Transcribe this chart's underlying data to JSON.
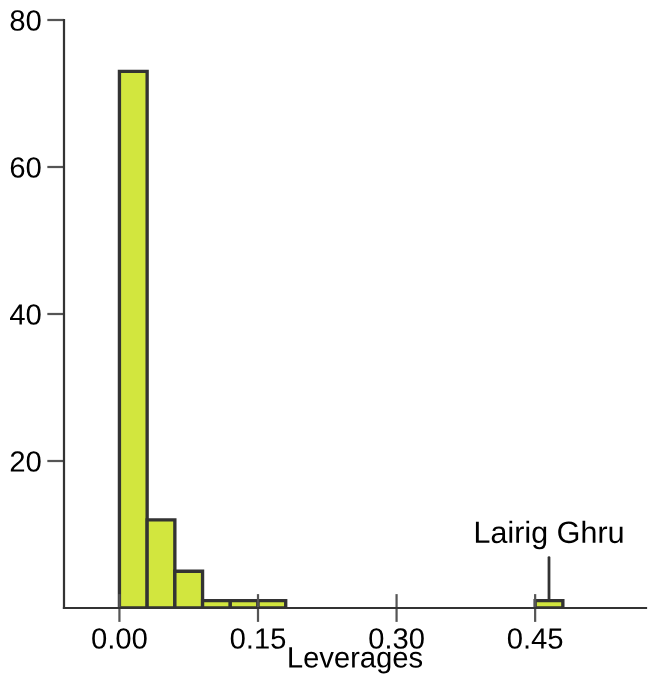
{
  "chart_data": {
    "type": "histogram",
    "xlabel": "Leverages",
    "bins": [
      0,
      0.03,
      0.06,
      0.09,
      0.12,
      0.15,
      0.18,
      0.21,
      0.24,
      0.27,
      0.3,
      0.33,
      0.36,
      0.39,
      0.42,
      0.45,
      0.48
    ],
    "values": [
      73,
      12,
      5,
      1,
      1,
      1,
      0,
      0,
      0,
      0,
      0,
      0,
      0,
      0,
      0,
      1
    ],
    "color": "#d2e63e",
    "xlim": [
      -0.06,
      0.57
    ],
    "xticks": [
      {
        "value": 0,
        "label": "0.00"
      },
      {
        "value": 0.15,
        "label": "0.15"
      },
      {
        "value": 0.3,
        "label": "0.30"
      },
      {
        "value": 0.45,
        "label": "0.45"
      }
    ],
    "ylim": [
      0,
      80
    ],
    "yticks": [
      20,
      40,
      60,
      80
    ],
    "annotations": [
      {
        "text": "Lairig Ghru",
        "x": 0.465,
        "y": 1
      }
    ],
    "grid": false,
    "legend": false
  }
}
